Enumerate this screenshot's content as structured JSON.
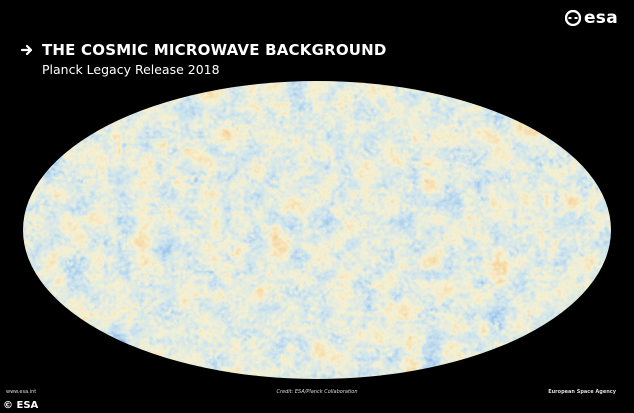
{
  "header": {
    "title": "THE COSMIC MICROWAVE BACKGROUND",
    "subtitle": "Planck Legacy Release 2018"
  },
  "logo": {
    "text": "esa"
  },
  "map": {
    "subject": "cmb-all-sky-mollweide",
    "colors": {
      "cold": "#1f5fae",
      "cool": "#5aa0d6",
      "neutral": "#e8dfa6",
      "warm": "#e39a4c",
      "hot": "#b7421c"
    }
  },
  "footer": {
    "url": "www.esa.int",
    "credit": "Credit: ESA/Planck Collaboration",
    "agency": "European Space Agency"
  },
  "copyright": "© ESA",
  "icons": {
    "arrow": "arrow-right-icon",
    "logo": "esa-logo-icon"
  }
}
